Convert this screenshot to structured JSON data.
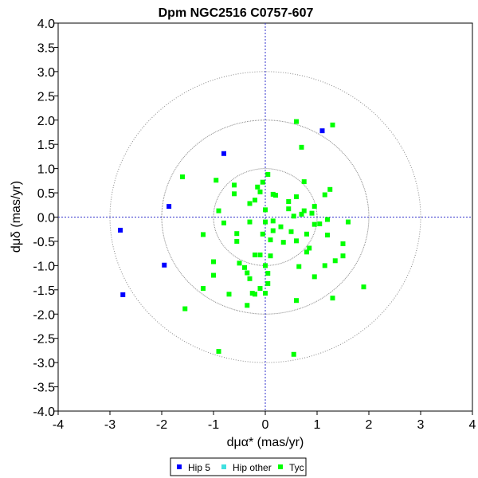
{
  "chart_data": {
    "type": "scatter",
    "title": "Dpm NGC2516  C0757-607",
    "xlabel": "dμα* (mas/yr)",
    "ylabel": "dμδ (mas/yr)",
    "xlim": [
      -4,
      4
    ],
    "ylim": [
      -4,
      4
    ],
    "x_ticks": [
      "-4",
      "-3",
      "-2",
      "-1",
      "0",
      "1",
      "2",
      "3",
      "4"
    ],
    "y_ticks": [
      "4.0",
      "3.5",
      "3.0",
      "2.5",
      "2.0",
      "1.5",
      "1.0",
      "0.5",
      "0.0",
      "-0.5",
      "-1.0",
      "-1.5",
      "-2.0",
      "-2.5",
      "-3.0",
      "-3.5",
      "-4.0"
    ],
    "reference_circle_radii": [
      1,
      2,
      3
    ],
    "grid": false,
    "legend_position": "bottom-center",
    "series": [
      {
        "name": "Hip 5",
        "color": "#0000ff",
        "points": [
          [
            1.1,
            1.78
          ],
          [
            -0.8,
            1.31
          ],
          [
            -1.86,
            0.22
          ],
          [
            -2.8,
            -0.27
          ],
          [
            -1.95,
            -0.99
          ],
          [
            -2.75,
            -1.6
          ]
        ]
      },
      {
        "name": "Hip other",
        "color": "#40e0e0",
        "points": []
      },
      {
        "name": "Tyc",
        "color": "#00ff00",
        "points": [
          [
            0.6,
            1.97
          ],
          [
            1.3,
            1.9
          ],
          [
            0.7,
            1.44
          ],
          [
            -1.6,
            0.83
          ],
          [
            -0.95,
            0.76
          ],
          [
            0.05,
            0.88
          ],
          [
            -0.05,
            0.72
          ],
          [
            -0.15,
            0.62
          ],
          [
            0.75,
            0.73
          ],
          [
            -0.6,
            0.66
          ],
          [
            1.25,
            0.57
          ],
          [
            -0.1,
            0.52
          ],
          [
            0.15,
            0.47
          ],
          [
            0.2,
            0.45
          ],
          [
            0.6,
            0.42
          ],
          [
            -0.6,
            0.48
          ],
          [
            1.15,
            0.46
          ],
          [
            -0.2,
            0.35
          ],
          [
            -0.3,
            0.28
          ],
          [
            0.45,
            0.32
          ],
          [
            0.95,
            0.22
          ],
          [
            -0.9,
            0.13
          ],
          [
            0.75,
            0.13
          ],
          [
            0.0,
            0.15
          ],
          [
            0.45,
            0.17
          ],
          [
            0.7,
            0.06
          ],
          [
            0.9,
            0.08
          ],
          [
            0.55,
            0.02
          ],
          [
            1.2,
            -0.05
          ],
          [
            1.6,
            -0.1
          ],
          [
            -0.8,
            -0.12
          ],
          [
            0.15,
            -0.08
          ],
          [
            -0.3,
            -0.1
          ],
          [
            0.0,
            -0.1
          ],
          [
            0.95,
            -0.15
          ],
          [
            1.05,
            -0.14
          ],
          [
            0.3,
            -0.2
          ],
          [
            -1.2,
            -0.36
          ],
          [
            -0.55,
            -0.34
          ],
          [
            -0.05,
            -0.35
          ],
          [
            0.5,
            -0.3
          ],
          [
            0.8,
            -0.35
          ],
          [
            1.2,
            -0.37
          ],
          [
            0.15,
            -0.28
          ],
          [
            -0.55,
            -0.5
          ],
          [
            0.1,
            -0.47
          ],
          [
            0.35,
            -0.52
          ],
          [
            0.6,
            -0.49
          ],
          [
            1.5,
            -0.55
          ],
          [
            0.85,
            -0.64
          ],
          [
            0.8,
            -0.72
          ],
          [
            -0.2,
            -0.78
          ],
          [
            -0.1,
            -0.78
          ],
          [
            0.1,
            -0.8
          ],
          [
            -1.0,
            -0.92
          ],
          [
            -0.5,
            -0.95
          ],
          [
            1.35,
            -0.9
          ],
          [
            1.5,
            -0.8
          ],
          [
            -0.4,
            -1.04
          ],
          [
            0.0,
            -1.0
          ],
          [
            0.65,
            -1.02
          ],
          [
            1.15,
            -1.0
          ],
          [
            -1.0,
            -1.2
          ],
          [
            -0.35,
            -1.15
          ],
          [
            0.05,
            -1.16
          ],
          [
            0.95,
            -1.23
          ],
          [
            -0.3,
            -1.27
          ],
          [
            0.05,
            -1.37
          ],
          [
            -1.2,
            -1.47
          ],
          [
            -0.1,
            -1.47
          ],
          [
            -0.25,
            -1.57
          ],
          [
            -0.2,
            -1.59
          ],
          [
            -0.7,
            -1.59
          ],
          [
            0.0,
            -1.57
          ],
          [
            1.9,
            -1.44
          ],
          [
            1.3,
            -1.67
          ],
          [
            0.6,
            -1.72
          ],
          [
            -0.35,
            -1.82
          ],
          [
            -1.55,
            -1.89
          ],
          [
            -0.9,
            -2.77
          ],
          [
            0.55,
            -2.83
          ]
        ]
      }
    ]
  }
}
